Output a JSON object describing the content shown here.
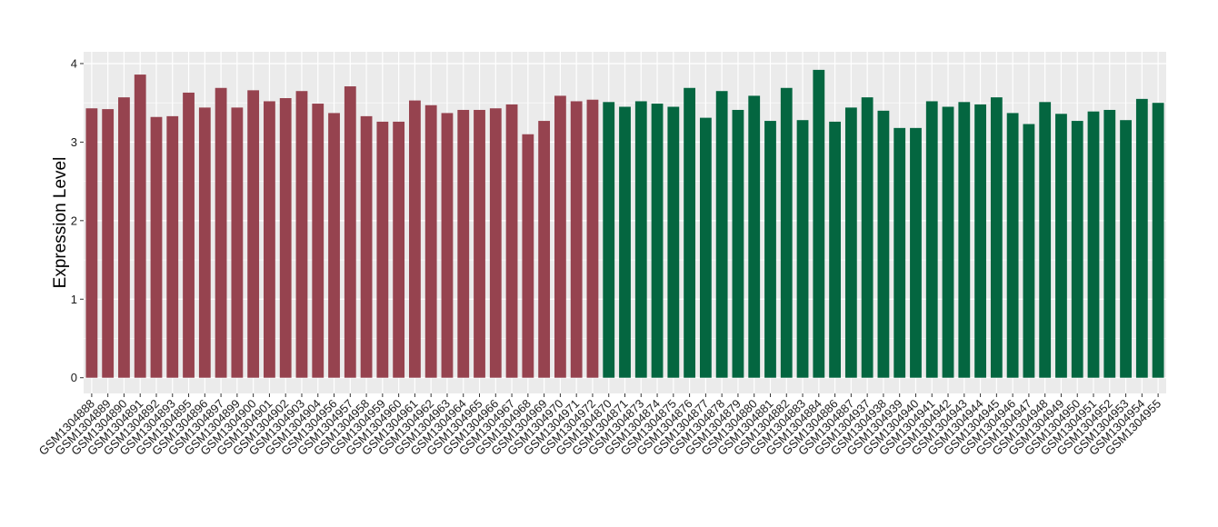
{
  "chart_data": {
    "type": "bar",
    "title": "",
    "xlabel": "",
    "ylabel": "Expression Level",
    "ylim": [
      0,
      4.15
    ],
    "yticks": [
      0,
      1,
      2,
      3,
      4
    ],
    "grid": true,
    "legend": "none",
    "categories": [
      "GSM1304888",
      "GSM1304889",
      "GSM1304890",
      "GSM1304891",
      "GSM1304892",
      "GSM1304893",
      "GSM1304895",
      "GSM1304896",
      "GSM1304897",
      "GSM1304899",
      "GSM1304900",
      "GSM1304901",
      "GSM1304902",
      "GSM1304903",
      "GSM1304904",
      "GSM1304956",
      "GSM1304957",
      "GSM1304958",
      "GSM1304959",
      "GSM1304960",
      "GSM1304961",
      "GSM1304962",
      "GSM1304963",
      "GSM1304964",
      "GSM1304965",
      "GSM1304966",
      "GSM1304967",
      "GSM1304968",
      "GSM1304969",
      "GSM1304970",
      "GSM1304971",
      "GSM1304972",
      "GSM1304870",
      "GSM1304871",
      "GSM1304873",
      "GSM1304874",
      "GSM1304875",
      "GSM1304876",
      "GSM1304877",
      "GSM1304878",
      "GSM1304879",
      "GSM1304880",
      "GSM1304881",
      "GSM1304882",
      "GSM1304883",
      "GSM1304884",
      "GSM1304886",
      "GSM1304887",
      "GSM1304937",
      "GSM1304938",
      "GSM1304939",
      "GSM1304940",
      "GSM1304941",
      "GSM1304942",
      "GSM1304943",
      "GSM1304944",
      "GSM1304945",
      "GSM1304946",
      "GSM1304947",
      "GSM1304948",
      "GSM1304949",
      "GSM1304950",
      "GSM1304951",
      "GSM1304952",
      "GSM1304953",
      "GSM1304954",
      "GSM1304955"
    ],
    "values": [
      3.43,
      3.42,
      3.57,
      3.86,
      3.32,
      3.33,
      3.63,
      3.44,
      3.69,
      3.44,
      3.66,
      3.52,
      3.56,
      3.65,
      3.49,
      3.37,
      3.71,
      3.33,
      3.26,
      3.26,
      3.53,
      3.47,
      3.37,
      3.41,
      3.41,
      3.43,
      3.48,
      3.1,
      3.27,
      3.59,
      3.52,
      3.54,
      3.51,
      3.45,
      3.52,
      3.49,
      3.45,
      3.69,
      3.31,
      3.65,
      3.41,
      3.59,
      3.27,
      3.69,
      3.28,
      3.92,
      3.26,
      3.44,
      3.57,
      3.4,
      3.18,
      3.18,
      3.52,
      3.45,
      3.51,
      3.48,
      3.57,
      3.37,
      3.23,
      3.51,
      3.36,
      3.27,
      3.39,
      3.41,
      3.28,
      3.55,
      3.5
    ],
    "groups": [
      {
        "start": 0,
        "end": 31,
        "color": "#96434f"
      },
      {
        "start": 32,
        "end": 66,
        "color": "#046640"
      }
    ],
    "panel_background": "#ebebeb",
    "grid_color": "#ffffff"
  }
}
